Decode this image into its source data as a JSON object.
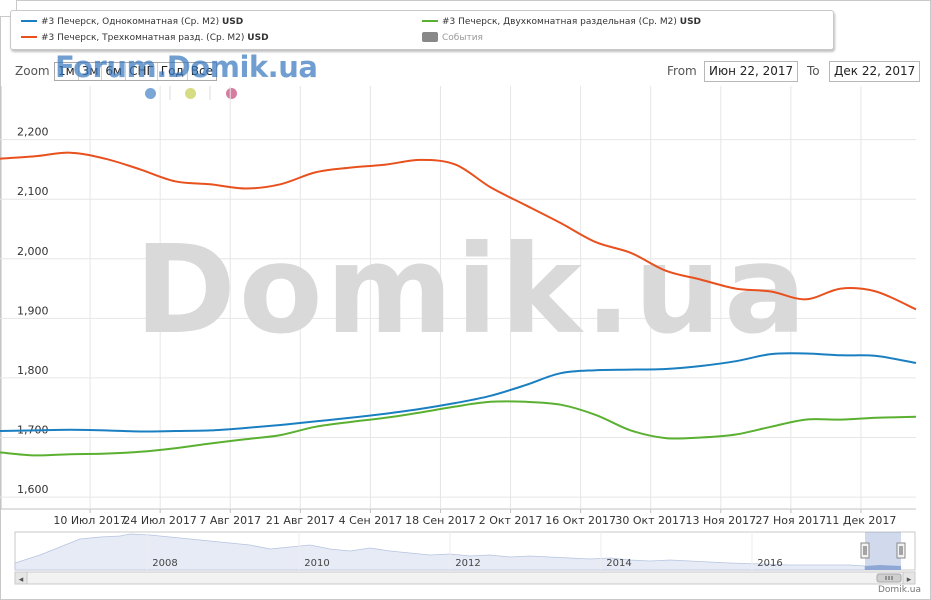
{
  "legend": {
    "items": [
      {
        "label": "#3 Печерск, Однокомнатная (Ср. M2)",
        "currency": "USD",
        "color": "#1a7fc1"
      },
      {
        "label": "#3 Печерск, Двухкомнатная раздельная (Ср. M2)",
        "currency": "USD",
        "color": "#5ab030"
      },
      {
        "label": "#3 Печерск, Трехкомнатная разд. (Ср. M2)",
        "currency": "USD",
        "color": "#e8501e"
      }
    ],
    "events_label": "События"
  },
  "toolbar": {
    "zoom_label": "Zoom",
    "zoom_buttons": [
      "1м",
      "3м",
      "6м",
      "СНГ",
      "Год",
      "Все"
    ],
    "from_label": "From",
    "from_value": "Июн 22, 2017",
    "to_label": "To",
    "to_value": "Дек 22, 2017"
  },
  "watermarks": {
    "top": "Forum.Domik.ua",
    "center": "Domik.ua"
  },
  "event_dot_colors": [
    "#7ba7d7",
    "#d6dc82",
    "#d77ba0"
  ],
  "footer_credit": "Domik.ua",
  "chart_data": {
    "type": "line",
    "ylim": [
      1580,
      2290
    ],
    "y_ticks": [
      1600,
      1700,
      1800,
      1900,
      2000,
      2100,
      2200
    ],
    "y_tick_labels": [
      "1,600",
      "1,700",
      "1,800",
      "1,900",
      "2,000",
      "2,100",
      "2,200"
    ],
    "x_range": [
      "2017-06-22",
      "2017-12-22"
    ],
    "x_ticks": [
      "2017-07-10",
      "2017-07-24",
      "2017-08-07",
      "2017-08-21",
      "2017-09-04",
      "2017-09-18",
      "2017-10-02",
      "2017-10-16",
      "2017-10-30",
      "2017-11-13",
      "2017-11-27",
      "2017-12-11"
    ],
    "x_tick_labels": [
      "10 Июл 2017",
      "24 Июл 2017",
      "7 Авг 2017",
      "21 Авг 2017",
      "4 Сен 2017",
      "18 Сен 2017",
      "2 Окт 2017",
      "16 Окт 2017",
      "30 Окт 2017",
      "13 Ноя 2017",
      "27 Ноя 2017",
      "11 Дек 2017"
    ],
    "grid": true,
    "series": [
      {
        "name": "#3 Печерск, Однокомнатная (Ср. M2)",
        "color": "#1a7fc1",
        "x": [
          "2017-06-22",
          "2017-06-29",
          "2017-07-06",
          "2017-07-13",
          "2017-07-20",
          "2017-07-27",
          "2017-08-03",
          "2017-08-10",
          "2017-08-17",
          "2017-08-24",
          "2017-08-31",
          "2017-09-07",
          "2017-09-14",
          "2017-09-21",
          "2017-09-28",
          "2017-10-05",
          "2017-10-12",
          "2017-10-19",
          "2017-10-26",
          "2017-11-02",
          "2017-11-09",
          "2017-11-16",
          "2017-11-23",
          "2017-11-30",
          "2017-12-07",
          "2017-12-14",
          "2017-12-22"
        ],
        "y": [
          1711,
          1712,
          1713,
          1712,
          1710,
          1711,
          1712,
          1716,
          1721,
          1727,
          1733,
          1740,
          1748,
          1758,
          1770,
          1788,
          1808,
          1813,
          1814,
          1815,
          1820,
          1828,
          1840,
          1841,
          1838,
          1837,
          1825
        ]
      },
      {
        "name": "#3 Печерск, Двухкомнатная раздельная (Ср. M2)",
        "color": "#5ab030",
        "x": [
          "2017-06-22",
          "2017-06-29",
          "2017-07-06",
          "2017-07-13",
          "2017-07-20",
          "2017-07-27",
          "2017-08-03",
          "2017-08-10",
          "2017-08-17",
          "2017-08-24",
          "2017-08-31",
          "2017-09-07",
          "2017-09-14",
          "2017-09-21",
          "2017-09-28",
          "2017-10-05",
          "2017-10-12",
          "2017-10-19",
          "2017-10-26",
          "2017-11-02",
          "2017-11-09",
          "2017-11-16",
          "2017-11-23",
          "2017-11-30",
          "2017-12-07",
          "2017-12-14",
          "2017-12-22"
        ],
        "y": [
          1675,
          1670,
          1672,
          1673,
          1676,
          1682,
          1690,
          1697,
          1704,
          1718,
          1726,
          1733,
          1742,
          1752,
          1760,
          1760,
          1755,
          1738,
          1712,
          1699,
          1700,
          1705,
          1718,
          1730,
          1730,
          1733,
          1735
        ]
      },
      {
        "name": "#3 Печерск, Трехкомнатная разд. (Ср. M2)",
        "color": "#e8501e",
        "x": [
          "2017-06-22",
          "2017-06-29",
          "2017-07-06",
          "2017-07-13",
          "2017-07-20",
          "2017-07-27",
          "2017-08-03",
          "2017-08-10",
          "2017-08-17",
          "2017-08-24",
          "2017-08-31",
          "2017-09-07",
          "2017-09-14",
          "2017-09-21",
          "2017-09-28",
          "2017-10-05",
          "2017-10-12",
          "2017-10-19",
          "2017-10-26",
          "2017-11-02",
          "2017-11-09",
          "2017-11-16",
          "2017-11-23",
          "2017-11-30",
          "2017-12-07",
          "2017-12-14",
          "2017-12-22"
        ],
        "y": [
          2168,
          2172,
          2178,
          2168,
          2150,
          2130,
          2125,
          2118,
          2125,
          2145,
          2153,
          2158,
          2166,
          2158,
          2120,
          2090,
          2060,
          2028,
          2010,
          1980,
          1965,
          1950,
          1945,
          1932,
          1950,
          1945,
          1915
        ]
      }
    ]
  },
  "navigator": {
    "year_labels": [
      "2008",
      "2010",
      "2012",
      "2014",
      "2016"
    ],
    "left_arrow": "◂",
    "right_arrow": "▸"
  }
}
